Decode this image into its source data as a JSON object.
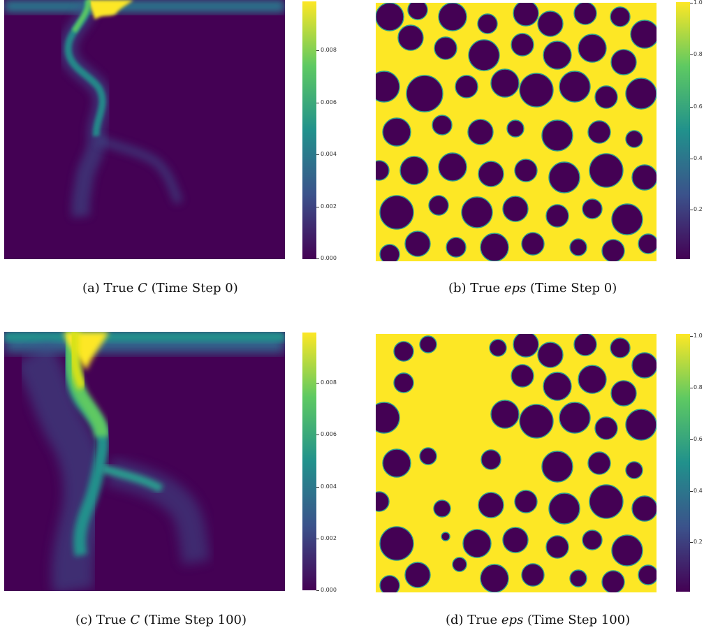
{
  "chart_data": [
    {
      "type": "heatmap",
      "caption": {
        "prefix": "(a) True",
        "var": "C",
        "suffix": "(Time Step 0)"
      },
      "colormap": "viridis",
      "colorbar": {
        "ticks": [
          "0.008",
          "0.006",
          "0.004",
          "0.002",
          "0.000"
        ],
        "range": [
          0.0,
          0.0098
        ]
      },
      "field": "concentration",
      "time_step": 0,
      "features": "narrow bright channel from the top boundary meandering downward; yellow only at top edge"
    },
    {
      "type": "heatmap",
      "caption": {
        "prefix": "(b) True",
        "var": "eps",
        "suffix": "(Time Step 0)"
      },
      "colormap": "viridis",
      "colorbar": {
        "ticks": [
          "1.0",
          "0.8",
          "0.6",
          "0.4",
          "0.2"
        ],
        "range": [
          0.0,
          1.0
        ]
      },
      "field": "porosity",
      "time_step": 0,
      "features": "dark circular grains on a yellow background"
    },
    {
      "type": "heatmap",
      "caption": {
        "prefix": "(c) True",
        "var": "C",
        "suffix": "(Time Step 100)"
      },
      "colormap": "viridis",
      "colorbar": {
        "ticks": [
          "0.008",
          "0.006",
          "0.004",
          "0.002",
          "0.000"
        ],
        "range": [
          0.0,
          0.0098
        ]
      },
      "field": "concentration",
      "time_step": 100,
      "features": "wide bright wormhole channel from the top boundary branching downward"
    },
    {
      "type": "heatmap",
      "caption": {
        "prefix": "(d) True",
        "var": "eps",
        "suffix": "(Time Step 100)"
      },
      "colormap": "viridis",
      "colorbar": {
        "ticks": [
          "1.0",
          "0.8",
          "0.6",
          "0.4",
          "0.2"
        ],
        "range": [
          0.0,
          1.0
        ]
      },
      "field": "porosity",
      "time_step": 100,
      "features": "grains dissolved along the channel path; eroded grain edges"
    }
  ],
  "colors": {
    "viridis_low": "#440154",
    "viridis_dark": "#46085a",
    "viridis_mid": "#21918c",
    "viridis_teal": "#2a9d8f",
    "viridis_green": "#5ec962",
    "viridis_high": "#fde725"
  }
}
